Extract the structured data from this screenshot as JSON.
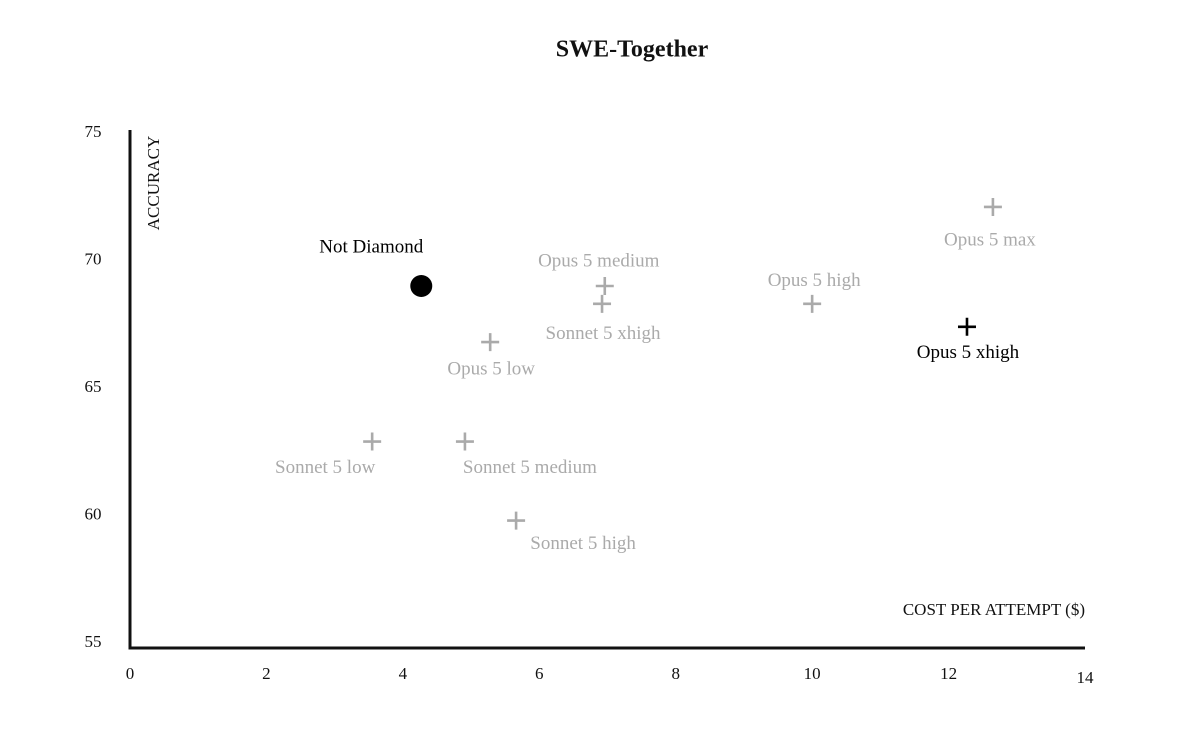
{
  "chart_data": {
    "type": "scatter",
    "title": "SWE-Together",
    "x_label": "COST PER ATTEMPT ($)",
    "y_label": "ACCURACY",
    "xlim": [
      0,
      14
    ],
    "xticks": [
      0,
      2,
      4,
      6,
      8,
      10,
      12,
      14
    ],
    "ylim": [
      55,
      75
    ],
    "yticks": [
      55,
      60,
      65,
      70,
      75
    ],
    "grid": false,
    "points": [
      {
        "label": "Not Diamond",
        "x": 4.27,
        "y": 69.0,
        "color": "#000000",
        "marker": "circle"
      },
      {
        "label": "Opus 5 medium",
        "x": 6.96,
        "y": 69.0,
        "color": "#aaaaaa",
        "marker": "plus"
      },
      {
        "label": "Sonnet 5 xhigh",
        "x": 6.92,
        "y": 68.3,
        "color": "#aaaaaa",
        "marker": "plus"
      },
      {
        "label": "Opus 5 high",
        "x": 10.0,
        "y": 68.3,
        "color": "#aaaaaa",
        "marker": "plus"
      },
      {
        "label": "Opus 5 max",
        "x": 12.65,
        "y": 72.1,
        "color": "#aaaaaa",
        "marker": "plus"
      },
      {
        "label": "Opus 5 xhigh",
        "x": 12.27,
        "y": 67.4,
        "color": "#000000",
        "marker": "plus"
      },
      {
        "label": "Opus 5 low",
        "x": 5.28,
        "y": 66.8,
        "color": "#aaaaaa",
        "marker": "plus"
      },
      {
        "label": "Sonnet 5 low",
        "x": 3.55,
        "y": 62.9,
        "color": "#aaaaaa",
        "marker": "plus"
      },
      {
        "label": "Sonnet 5 medium",
        "x": 4.91,
        "y": 62.9,
        "color": "#aaaaaa",
        "marker": "plus"
      },
      {
        "label": "Sonnet 5 high",
        "x": 5.66,
        "y": 59.8,
        "color": "#aaaaaa",
        "marker": "plus"
      }
    ]
  }
}
